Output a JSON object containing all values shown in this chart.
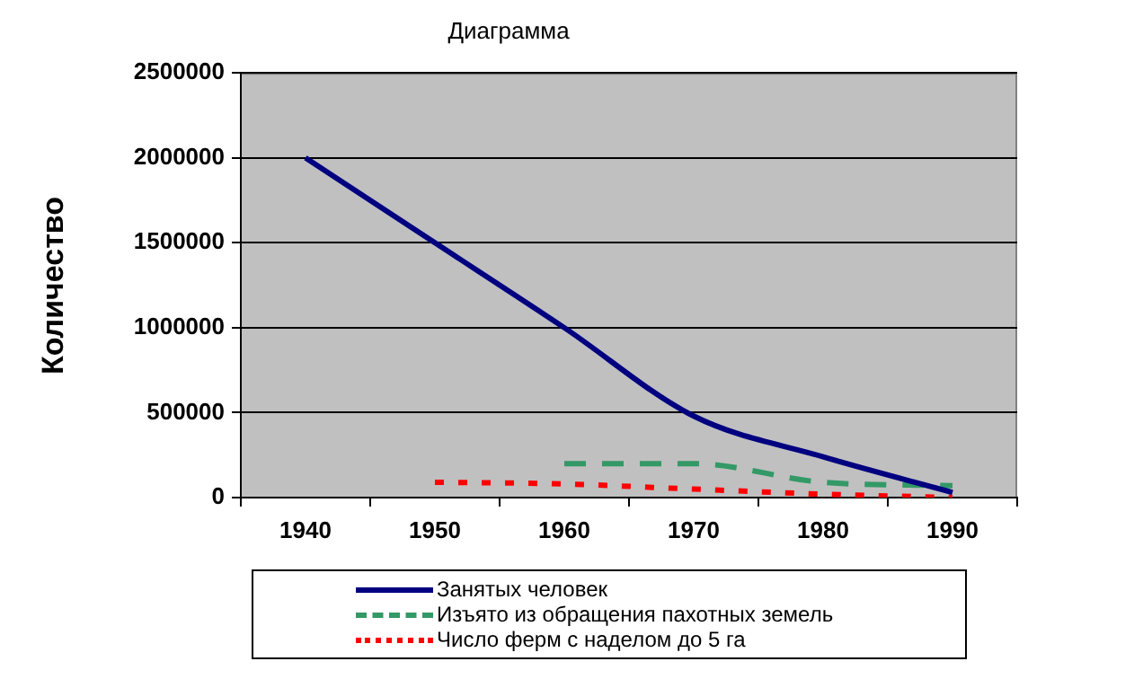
{
  "chart_data": {
    "type": "line",
    "title": "Диаграмма",
    "ylabel": "Количество",
    "categories": [
      "1940",
      "1950",
      "1960",
      "1970",
      "1980",
      "1990"
    ],
    "series": [
      {
        "name": "Занятых человек",
        "color": "#000080",
        "line_style": "solid",
        "values": [
          2000000,
          1500000,
          1000000,
          480000,
          240000,
          30000
        ]
      },
      {
        "name": "Изъято из обращения пахотных земель",
        "color": "#339966",
        "line_style": "dashed",
        "values": [
          null,
          null,
          200000,
          200000,
          90000,
          70000
        ]
      },
      {
        "name": "Число ферм с наделом до 5 га",
        "color": "#ff0000",
        "line_style": "dotted",
        "values": [
          null,
          90000,
          80000,
          50000,
          20000,
          0
        ]
      }
    ],
    "ylim": [
      0,
      2500000
    ],
    "yticks": [
      0,
      500000,
      1000000,
      1500000,
      2000000,
      2500000
    ],
    "grid": "y",
    "legend": "bottom",
    "marker": "none"
  }
}
